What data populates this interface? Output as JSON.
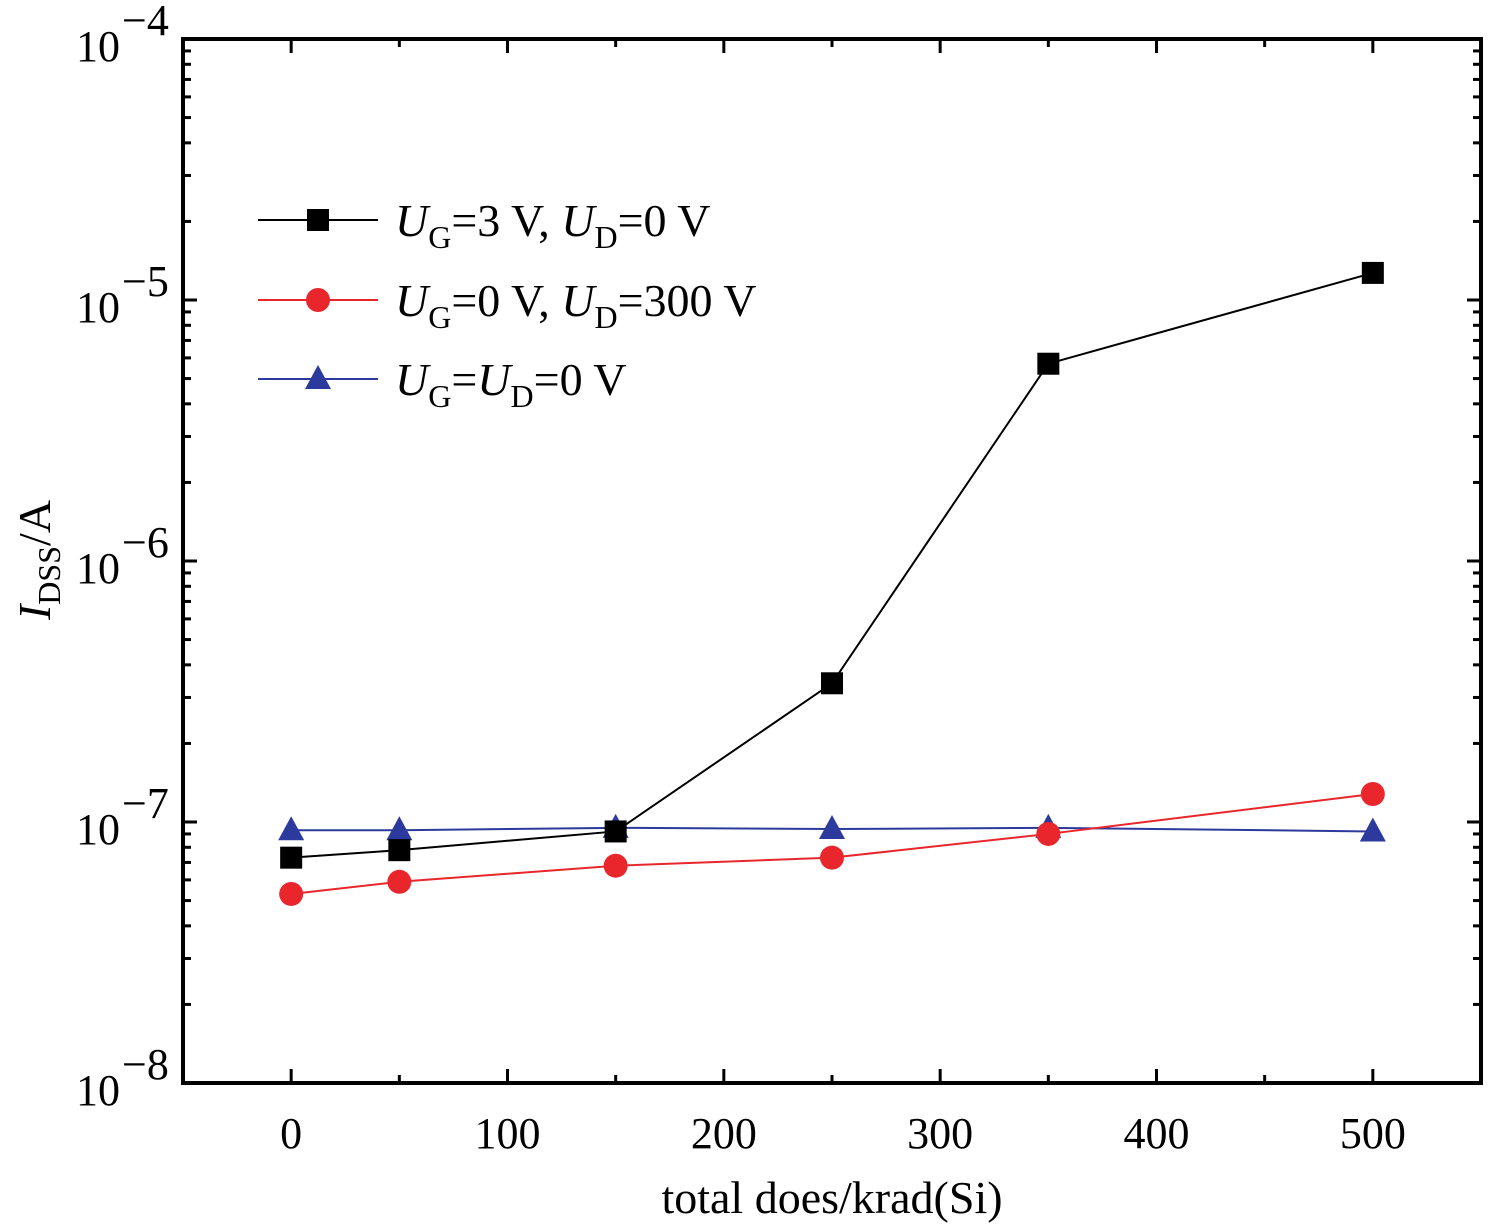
{
  "chart_data": {
    "type": "line",
    "xlabel": "total does/krad(Si)",
    "ylabel_main": "I",
    "ylabel_sub": "DSS",
    "ylabel_unit": "/A",
    "y_scale": "log",
    "xlim": [
      -50,
      550
    ],
    "ylim": [
      1e-08,
      0.0001
    ],
    "x_ticks": [
      0,
      100,
      200,
      300,
      400,
      500
    ],
    "y_ticks": [
      {
        "value": 1e-08,
        "base": "10",
        "exp": "−8"
      },
      {
        "value": 1e-07,
        "base": "10",
        "exp": "−7"
      },
      {
        "value": 1e-06,
        "base": "10",
        "exp": "−6"
      },
      {
        "value": 1e-05,
        "base": "10",
        "exp": "−5"
      },
      {
        "value": 0.0001,
        "base": "10",
        "exp": "−4"
      }
    ],
    "grid": false,
    "legend_position": "top-left",
    "series": [
      {
        "legend": [
          {
            "t": "U",
            "i": true
          },
          {
            "t": "G",
            "sub": true
          },
          {
            "t": "=3 V, "
          },
          {
            "t": "U",
            "i": true
          },
          {
            "t": "D",
            "sub": true
          },
          {
            "t": "=0 V"
          }
        ],
        "color": "#000000",
        "marker": "square",
        "x": [
          0,
          50,
          150,
          250,
          350,
          500
        ],
        "y": [
          7.3e-08,
          7.8e-08,
          9.2e-08,
          3.4e-07,
          5.7e-06,
          1.27e-05
        ]
      },
      {
        "legend": [
          {
            "t": "U",
            "i": true
          },
          {
            "t": "G",
            "sub": true
          },
          {
            "t": "=0 V, "
          },
          {
            "t": "U",
            "i": true
          },
          {
            "t": "D",
            "sub": true
          },
          {
            "t": "=300 V"
          }
        ],
        "color": "#e8262c",
        "marker": "circle",
        "x": [
          0,
          50,
          150,
          250,
          350,
          500
        ],
        "y": [
          5.3e-08,
          5.9e-08,
          6.8e-08,
          7.3e-08,
          9e-08,
          1.28e-07
        ]
      },
      {
        "legend": [
          {
            "t": "U",
            "i": true
          },
          {
            "t": "G",
            "sub": true
          },
          {
            "t": "="
          },
          {
            "t": "U",
            "i": true
          },
          {
            "t": "D",
            "sub": true
          },
          {
            "t": "=0 V"
          }
        ],
        "color": "#2b3a9c",
        "marker": "triangle",
        "x": [
          0,
          50,
          150,
          250,
          350,
          500
        ],
        "y": [
          9.3e-08,
          9.3e-08,
          9.5e-08,
          9.4e-08,
          9.5e-08,
          9.2e-08
        ]
      }
    ]
  }
}
